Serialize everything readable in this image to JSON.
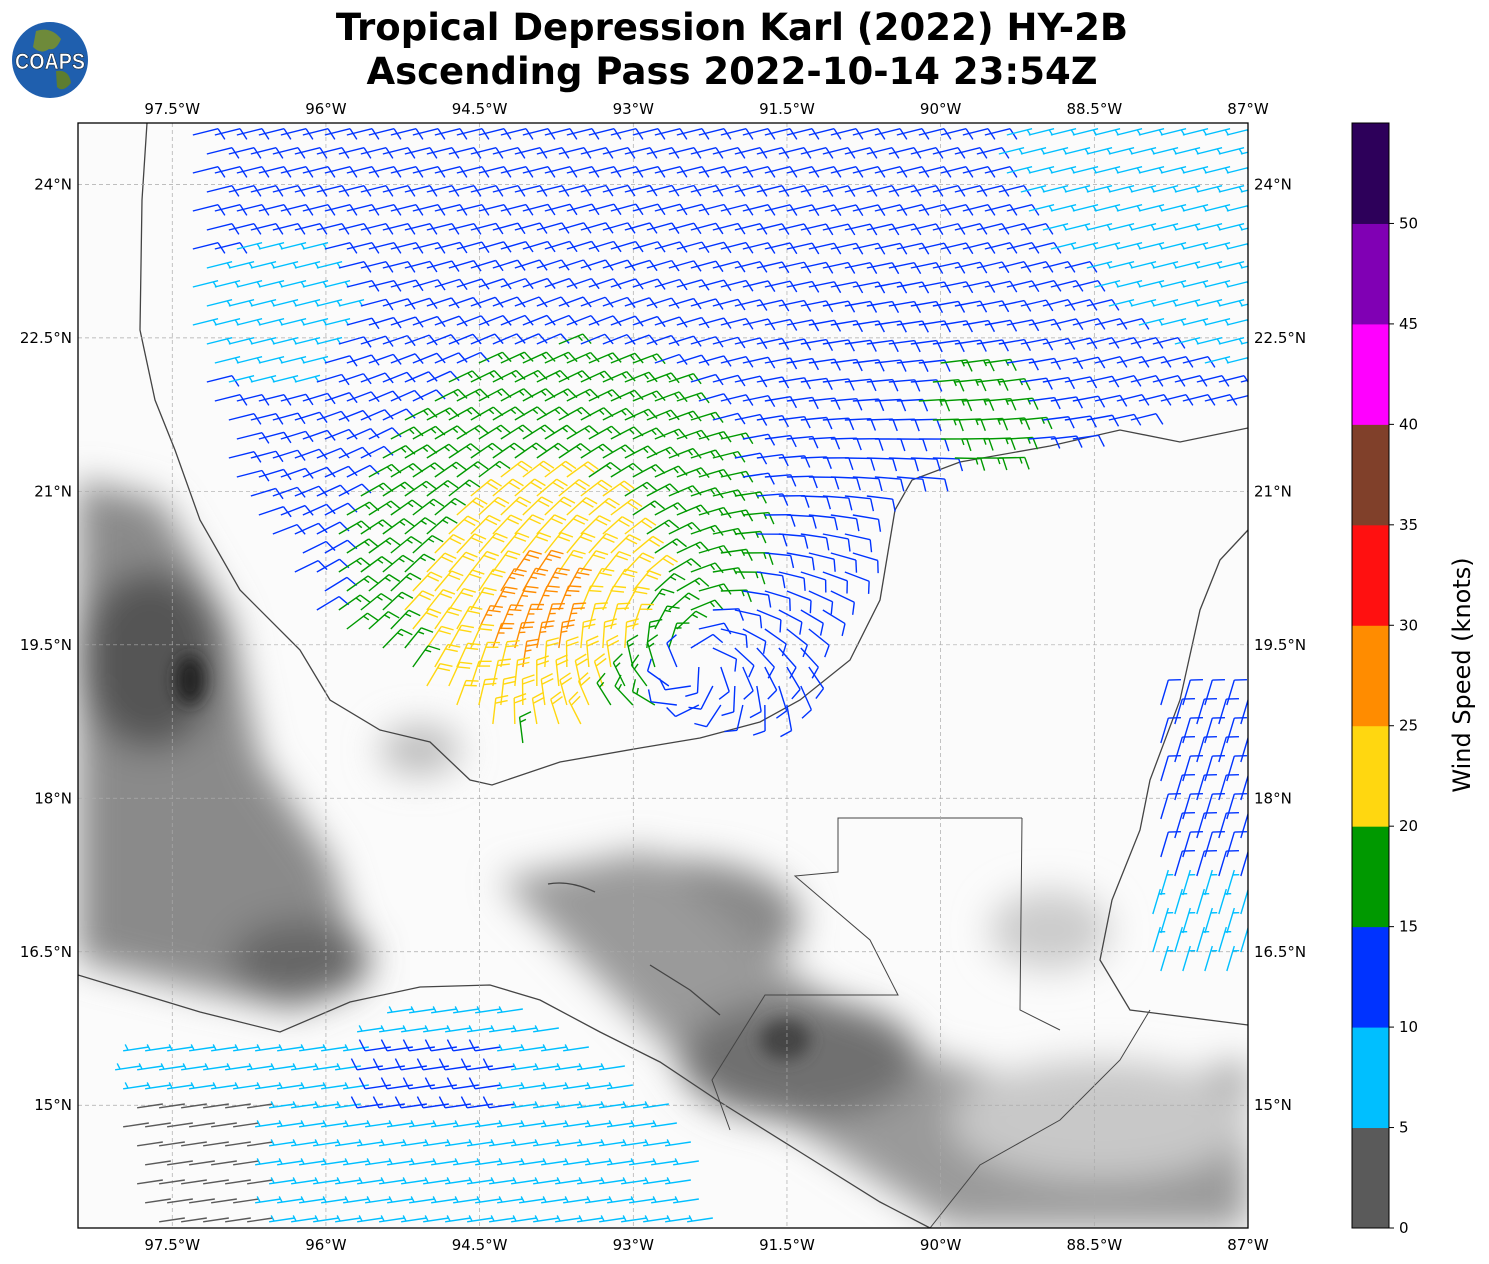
{
  "title": {
    "line1": "Tropical Depression Karl (2022) HY-2B",
    "line2": "Ascending Pass 2022-10-14 23:54Z"
  },
  "logo": {
    "text": "COAPS"
  },
  "map": {
    "lon_range": [
      -98.42,
      -87.0
    ],
    "lat_range": [
      13.8,
      24.6
    ],
    "lon_ticks": [
      "97.5°W",
      "96°W",
      "94.5°W",
      "93°W",
      "91.5°W",
      "90°W",
      "88.5°W",
      "87°W"
    ],
    "lon_values": [
      -97.5,
      -96,
      -94.5,
      -93,
      -91.5,
      -90,
      -88.5,
      -87
    ],
    "lat_ticks": [
      "24°N",
      "22.5°N",
      "21°N",
      "19.5°N",
      "18°N",
      "16.5°N",
      "15°N"
    ],
    "lat_values": [
      24,
      22.5,
      21,
      19.5,
      18,
      16.5,
      15
    ],
    "gridlines": true,
    "background": "grayscale terrain elevation",
    "storm_center": {
      "lat": 19.3,
      "lon": -92.4
    }
  },
  "colorbar": {
    "label": "Wind Speed (knots)",
    "ticks": [
      "0",
      "5",
      "10",
      "15",
      "20",
      "25",
      "30",
      "35",
      "40",
      "45",
      "50"
    ],
    "bounds": [
      0,
      5,
      10,
      15,
      20,
      25,
      30,
      35,
      40,
      45,
      50,
      55
    ],
    "colors": [
      "#5a5a5a",
      "#00bfff",
      "#0033ff",
      "#009900",
      "#ffd710",
      "#ff8c00",
      "#ff1010",
      "#80402a",
      "#ff00ff",
      "#8000b4",
      "#2d005a"
    ]
  }
}
